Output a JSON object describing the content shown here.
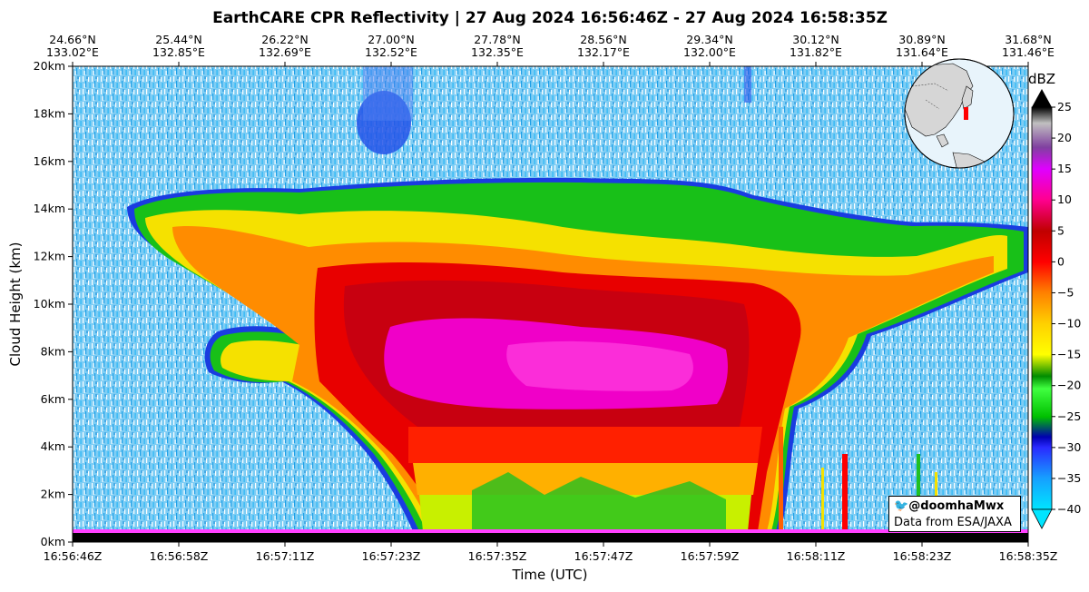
{
  "chart_data": {
    "type": "heatmap",
    "title": "EarthCARE CPR Reflectivity | 27 Aug 2024 16:56:46Z - 27 Aug 2024 16:58:35Z",
    "xlabel": "Time (UTC)",
    "ylabel": "Cloud Height (km)",
    "x_ticks": [
      "16:56:46Z",
      "16:56:58Z",
      "16:57:11Z",
      "16:57:23Z",
      "16:57:35Z",
      "16:57:47Z",
      "16:57:59Z",
      "16:58:11Z",
      "16:58:23Z",
      "16:58:35Z"
    ],
    "top_ticks": [
      {
        "lat": "24.66°N",
        "lon": "133.02°E"
      },
      {
        "lat": "25.44°N",
        "lon": "132.85°E"
      },
      {
        "lat": "26.22°N",
        "lon": "132.69°E"
      },
      {
        "lat": "27.00°N",
        "lon": "132.52°E"
      },
      {
        "lat": "27.78°N",
        "lon": "132.35°E"
      },
      {
        "lat": "28.56°N",
        "lon": "132.17°E"
      },
      {
        "lat": "29.34°N",
        "lon": "132.00°E"
      },
      {
        "lat": "30.12°N",
        "lon": "131.82°E"
      },
      {
        "lat": "30.89°N",
        "lon": "131.64°E"
      },
      {
        "lat": "31.68°N",
        "lon": "131.46°E"
      }
    ],
    "y_ticks": [
      "0km",
      "2km",
      "4km",
      "6km",
      "8km",
      "10km",
      "12km",
      "14km",
      "16km",
      "18km",
      "20km"
    ],
    "ylim": [
      0,
      20
    ],
    "colorbar": {
      "label": "dBZ",
      "ticks": [
        "25",
        "20",
        "15",
        "10",
        "5",
        "0",
        "−5",
        "−10",
        "−15",
        "−20",
        "−25",
        "−30",
        "−35",
        "−40"
      ],
      "range": [
        -40,
        25
      ]
    },
    "cloud_profile": {
      "description_points_time_fraction": [
        0.06,
        0.1,
        0.15,
        0.2,
        0.25,
        0.3,
        0.35,
        0.4,
        0.45,
        0.5,
        0.55,
        0.6,
        0.65,
        0.7,
        0.75,
        0.8,
        0.85,
        0.9,
        0.95,
        1.0
      ],
      "top_km": [
        14.0,
        13.9,
        14.1,
        14.3,
        14.4,
        14.5,
        14.5,
        14.6,
        14.6,
        14.7,
        14.6,
        14.6,
        14.7,
        14.5,
        13.9,
        13.0,
        12.5,
        12.6,
        12.9,
        13.0
      ]
    }
  },
  "watermark": {
    "handle": "@doomhaMwx",
    "source": "Data from ESA/JAXA"
  },
  "colors": {
    "background_noise": "#3fb4ef",
    "colormap": [
      "#00e0ff",
      "#1a5bff",
      "#0000c8",
      "#10d010",
      "#008a00",
      "#ffff00",
      "#ff8000",
      "#ff0000",
      "#c00000",
      "#ff00ff",
      "#800080",
      "#000000"
    ]
  }
}
